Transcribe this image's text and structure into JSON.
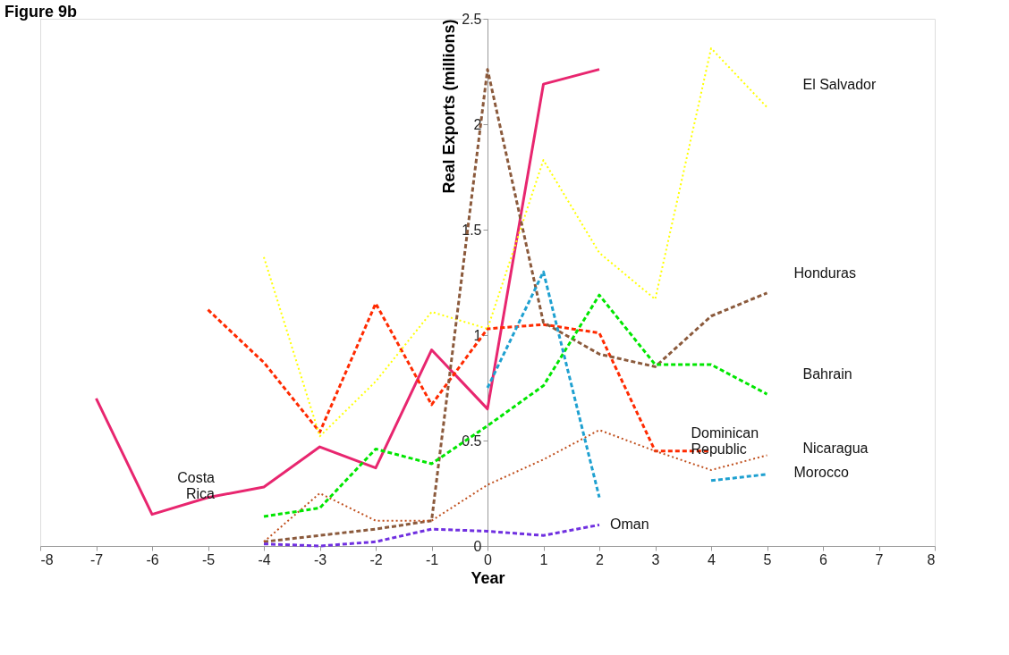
{
  "chart_data": {
    "type": "line",
    "title": "Figure 9b",
    "xlabel": "Year",
    "ylabel": "Real Exports (millions)",
    "x": [
      -7,
      -6,
      -5,
      -4,
      -3,
      -2,
      -1,
      0,
      1,
      2,
      3,
      4,
      5
    ],
    "series": [
      {
        "name": "Costa Rica",
        "color": "#e8266f",
        "line_style": "solid",
        "values": [
          0.7,
          0.15,
          0.23,
          0.28,
          0.47,
          0.37,
          0.93,
          0.65,
          2.19,
          2.26,
          null,
          null,
          null
        ]
      },
      {
        "name": "Dominican Republic",
        "color": "#ff2a00",
        "line_style": "dashed",
        "values": [
          null,
          null,
          1.12,
          0.87,
          0.54,
          1.15,
          0.67,
          1.03,
          1.05,
          1.01,
          0.45,
          0.45,
          null
        ]
      },
      {
        "name": "El Salvador",
        "color": "#ffff00",
        "line_style": "dotted",
        "values": [
          null,
          null,
          null,
          1.37,
          0.52,
          0.78,
          1.11,
          1.03,
          1.83,
          1.39,
          1.17,
          2.36,
          2.08
        ]
      },
      {
        "name": "Honduras",
        "color": "#8b5a3c",
        "line_style": "dashed",
        "values": [
          null,
          null,
          null,
          0.02,
          0.05,
          0.08,
          0.12,
          2.26,
          1.06,
          0.91,
          0.85,
          1.09,
          1.2
        ]
      },
      {
        "name": "Nicaragua",
        "color": "#c0501e",
        "line_style": "dotted",
        "values": [
          null,
          null,
          null,
          0.02,
          0.25,
          0.12,
          0.12,
          0.29,
          0.41,
          0.55,
          0.45,
          0.36,
          0.43
        ]
      },
      {
        "name": "Bahrain",
        "color": "#00e600",
        "line_style": "dashed",
        "values": [
          null,
          null,
          null,
          0.14,
          0.18,
          0.46,
          0.39,
          0.57,
          0.76,
          1.19,
          0.86,
          0.86,
          0.72
        ]
      },
      {
        "name": "Morocco",
        "color": "#1ea0d0",
        "line_style": "dashed",
        "values": [
          null,
          null,
          null,
          null,
          null,
          null,
          null,
          0.75,
          1.3,
          0.23,
          null,
          0.31,
          0.34
        ]
      },
      {
        "name": "Oman",
        "color": "#7030e0",
        "line_style": "dashed",
        "values": [
          null,
          null,
          null,
          0.01,
          0.0,
          0.02,
          0.08,
          0.07,
          0.05,
          0.1,
          null,
          null,
          null
        ]
      }
    ],
    "xlim": [
      -8,
      8
    ],
    "xticks": [
      -8,
      -7,
      -6,
      -5,
      -4,
      -3,
      -2,
      -1,
      0,
      1,
      2,
      3,
      4,
      5,
      6,
      7,
      8
    ],
    "ylim": [
      0,
      2.5
    ],
    "yticks": [
      0,
      0.5,
      1,
      1.5,
      2,
      2.5
    ],
    "grid": false
  }
}
